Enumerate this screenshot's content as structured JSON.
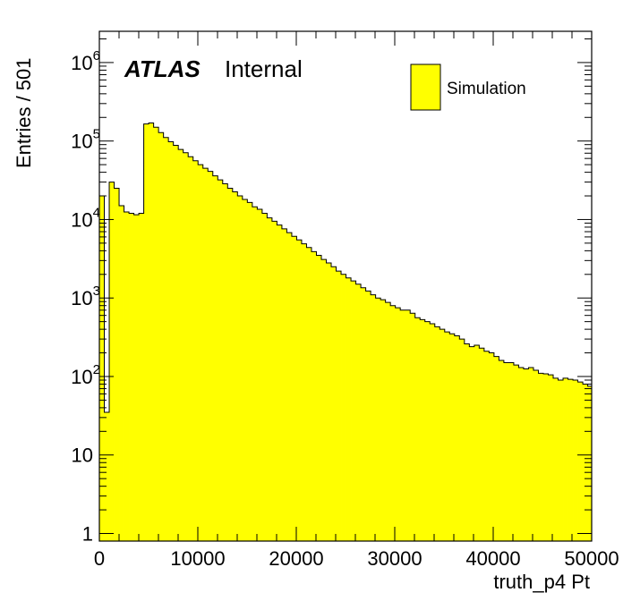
{
  "chart_data": {
    "type": "bar",
    "xlabel": "truth_p4 Pt",
    "ylabel": "Entries / 501",
    "xlim": [
      0,
      50000
    ],
    "ylim": [
      0.8,
      2500000
    ],
    "yscale": "log",
    "grid": false,
    "bin_width": 501,
    "x_ticks": [
      0,
      10000,
      20000,
      30000,
      40000,
      50000
    ],
    "x_tick_labels": [
      "0",
      "10000",
      "20000",
      "30000",
      "40000",
      "50000"
    ],
    "y_ticks": [
      1,
      10,
      100,
      1000,
      10000,
      100000,
      1000000
    ],
    "y_tick_labels": [
      {
        "base": "1",
        "exp": ""
      },
      {
        "base": "10",
        "exp": ""
      },
      {
        "base": "10",
        "exp": "2"
      },
      {
        "base": "10",
        "exp": "3"
      },
      {
        "base": "10",
        "exp": "4"
      },
      {
        "base": "10",
        "exp": "5"
      },
      {
        "base": "10",
        "exp": "6"
      }
    ],
    "legend_position": "top-right",
    "series": [
      {
        "name": "Simulation",
        "fill": "#ffff00",
        "values": [
          20000,
          35,
          30000,
          25000,
          15000,
          12500,
          12000,
          11500,
          12000,
          165000,
          170000,
          150000,
          128000,
          111000,
          98000,
          88000,
          78000,
          71000,
          63000,
          56000,
          50000,
          45000,
          41000,
          36000,
          32000,
          28500,
          25000,
          22500,
          20000,
          18000,
          16500,
          14500,
          13500,
          12000,
          10500,
          9500,
          8500,
          7600,
          6800,
          6100,
          5500,
          4900,
          4400,
          3900,
          3500,
          3100,
          2800,
          2500,
          2200,
          2000,
          1800,
          1650,
          1500,
          1350,
          1230,
          1100,
          1000,
          950,
          880,
          800,
          750,
          700,
          700,
          640,
          560,
          530,
          500,
          470,
          430,
          400,
          370,
          350,
          330,
          300,
          260,
          240,
          250,
          230,
          210,
          200,
          180,
          160,
          150,
          150,
          140,
          130,
          125,
          130,
          120,
          110,
          108,
          105,
          95,
          90,
          95,
          92,
          90,
          85,
          80,
          75
        ]
      }
    ],
    "annotations": [
      {
        "bold_italic": "ATLAS",
        "text": "Internal"
      }
    ]
  }
}
